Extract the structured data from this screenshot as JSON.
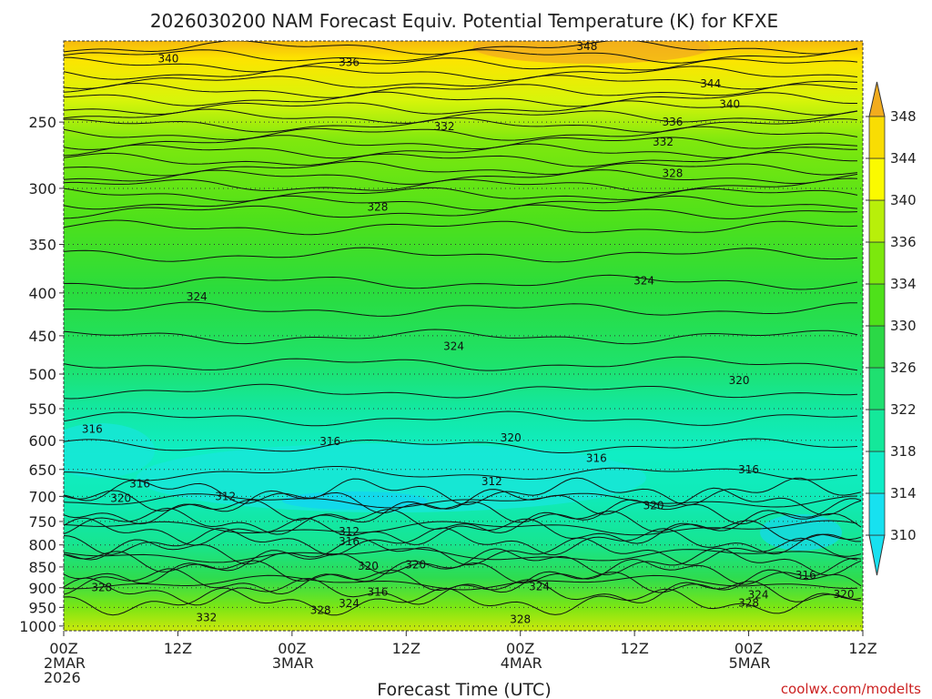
{
  "chart_data": {
    "type": "heatmap",
    "title": "2026030200 NAM Forecast Equiv. Potential Temperature (K) for KFXE",
    "xlabel": "Forecast Time (UTC)",
    "ylabel": "",
    "credit": "coolwx.com/modelts",
    "x_ticks": [
      {
        "hour": 0,
        "lines": [
          "00Z",
          "2MAR",
          "2026"
        ]
      },
      {
        "hour": 12,
        "lines": [
          "12Z"
        ]
      },
      {
        "hour": 24,
        "lines": [
          "00Z",
          "3MAR"
        ]
      },
      {
        "hour": 36,
        "lines": [
          "12Z"
        ]
      },
      {
        "hour": 48,
        "lines": [
          "00Z",
          "4MAR"
        ]
      },
      {
        "hour": 60,
        "lines": [
          "12Z"
        ]
      },
      {
        "hour": 72,
        "lines": [
          "00Z",
          "5MAR"
        ]
      },
      {
        "hour": 84,
        "lines": [
          "12Z"
        ]
      }
    ],
    "xlim": [
      0,
      84
    ],
    "y_ticks": [
      250,
      300,
      350,
      400,
      450,
      500,
      550,
      600,
      650,
      700,
      750,
      800,
      850,
      900,
      950,
      1000
    ],
    "ylim": [
      200,
      1013
    ],
    "y_scale": "log-pressure (hPa)",
    "colorbar_ticks": [
      310,
      314,
      318,
      322,
      326,
      330,
      334,
      336,
      340,
      344,
      348
    ],
    "colorbar_colors": [
      "#17e1f0",
      "#0fedc7",
      "#14e89a",
      "#1fe070",
      "#2bd846",
      "#4ee11a",
      "#7ce80d",
      "#b8ef0a",
      "#fbfa00",
      "#f9dd03",
      "#f2ac1e"
    ],
    "surface_color": "#a0522d",
    "ground_pressure": 1013,
    "contour_labels": [
      {
        "value": 348,
        "hour": 55,
        "pressure": 203
      },
      {
        "value": 340,
        "hour": 11,
        "pressure": 210
      },
      {
        "value": 336,
        "hour": 30,
        "pressure": 212
      },
      {
        "value": 344,
        "hour": 68,
        "pressure": 225
      },
      {
        "value": 340,
        "hour": 70,
        "pressure": 238
      },
      {
        "value": 336,
        "hour": 64,
        "pressure": 250
      },
      {
        "value": 332,
        "hour": 40,
        "pressure": 253
      },
      {
        "value": 332,
        "hour": 63,
        "pressure": 264
      },
      {
        "value": 328,
        "hour": 64,
        "pressure": 288
      },
      {
        "value": 328,
        "hour": 33,
        "pressure": 316
      },
      {
        "value": 324,
        "hour": 14,
        "pressure": 404
      },
      {
        "value": 324,
        "hour": 61,
        "pressure": 387
      },
      {
        "value": 324,
        "hour": 41,
        "pressure": 463
      },
      {
        "value": 320,
        "hour": 71,
        "pressure": 509
      },
      {
        "value": 316,
        "hour": 3,
        "pressure": 582
      },
      {
        "value": 316,
        "hour": 28,
        "pressure": 602
      },
      {
        "value": 320,
        "hour": 47,
        "pressure": 596
      },
      {
        "value": 316,
        "hour": 56,
        "pressure": 630
      },
      {
        "value": 316,
        "hour": 72,
        "pressure": 650
      },
      {
        "value": 316,
        "hour": 8,
        "pressure": 676
      },
      {
        "value": 320,
        "hour": 6,
        "pressure": 704
      },
      {
        "value": 312,
        "hour": 17,
        "pressure": 700
      },
      {
        "value": 312,
        "hour": 45,
        "pressure": 672
      },
      {
        "value": 320,
        "hour": 62,
        "pressure": 718
      },
      {
        "value": 312,
        "hour": 30,
        "pressure": 771
      },
      {
        "value": 316,
        "hour": 30,
        "pressure": 793
      },
      {
        "value": 320,
        "hour": 32,
        "pressure": 848
      },
      {
        "value": 320,
        "hour": 37,
        "pressure": 845
      },
      {
        "value": 328,
        "hour": 4,
        "pressure": 899
      },
      {
        "value": 316,
        "hour": 33,
        "pressure": 911
      },
      {
        "value": 324,
        "hour": 50,
        "pressure": 897
      },
      {
        "value": 316,
        "hour": 78,
        "pressure": 869
      },
      {
        "value": 324,
        "hour": 73,
        "pressure": 918
      },
      {
        "value": 320,
        "hour": 82,
        "pressure": 916
      },
      {
        "value": 324,
        "hour": 30,
        "pressure": 940
      },
      {
        "value": 328,
        "hour": 27,
        "pressure": 958
      },
      {
        "value": 328,
        "hour": 72,
        "pressure": 938
      },
      {
        "value": 332,
        "hour": 15,
        "pressure": 977
      },
      {
        "value": 328,
        "hour": 48,
        "pressure": 982
      }
    ]
  }
}
